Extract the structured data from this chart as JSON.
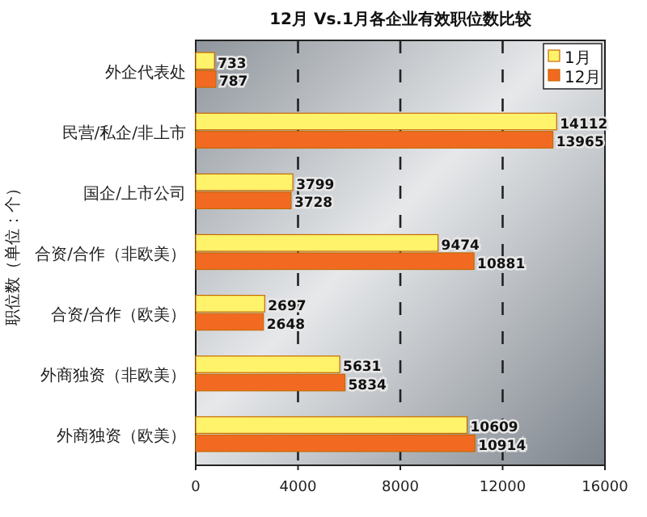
{
  "chart_data": {
    "type": "bar",
    "orientation": "horizontal",
    "title": "12月 Vs.1月各企业有效职位数比较",
    "ylabel": "职位数（单位：个）",
    "categories": [
      "外企代表处",
      "民营/私企/非上市",
      "国企/上市公司",
      "合资/合作（非欧美）",
      "合资/合作（欧美）",
      "外商独资（非欧美）",
      "外商独资（欧美）"
    ],
    "series": [
      {
        "name": "1月",
        "color": "#fff36b",
        "values": [
          733,
          14112,
          3799,
          9474,
          2697,
          5631,
          10609
        ]
      },
      {
        "name": "12月",
        "color": "#f26a22",
        "values": [
          787,
          13965,
          3728,
          10881,
          2648,
          5834,
          10914
        ]
      }
    ],
    "xlim": [
      0,
      16000
    ],
    "xticks": [
      0,
      4000,
      8000,
      12000,
      16000
    ],
    "grid": "x",
    "legend": "top right",
    "data_labels": true
  }
}
